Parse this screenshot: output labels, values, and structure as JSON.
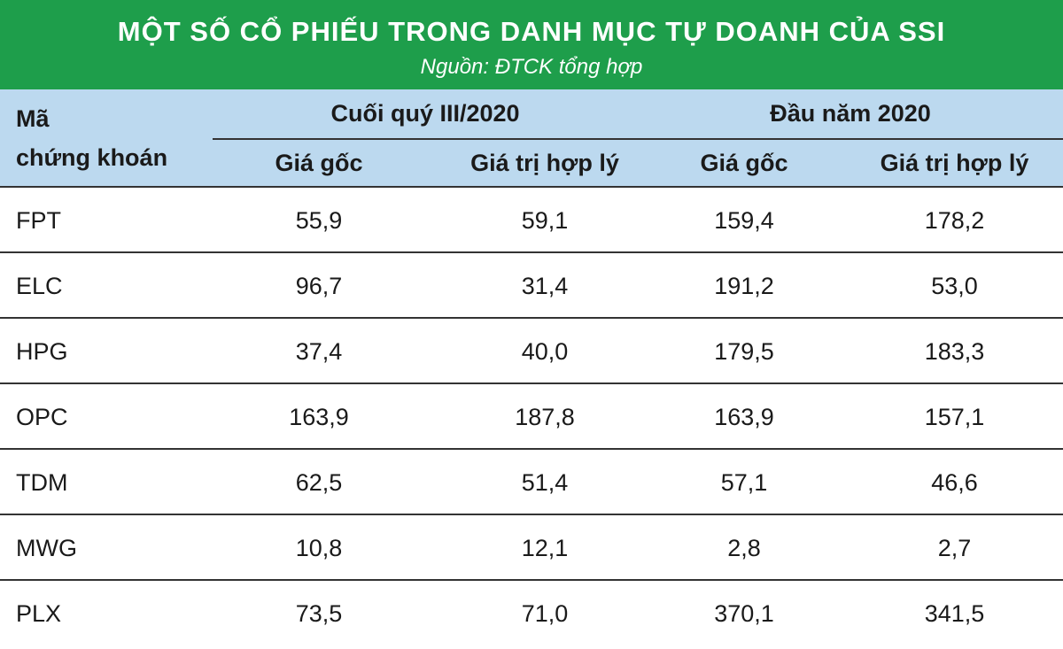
{
  "title": "MỘT SỐ CỔ PHIẾU TRONG DANH MỤC TỰ DOANH CỦA SSI",
  "subtitle": "Nguồn: ĐTCK tổng hợp",
  "chart_data": {
    "type": "table",
    "header": {
      "col0_line1": "Mã",
      "col0_line2": "chứng khoán",
      "groups": [
        "Cuối quý III/2020",
        "Đầu năm 2020"
      ],
      "subheaders": [
        "Giá gốc",
        "Giá trị hợp lý",
        "Giá gốc",
        "Giá trị hợp lý"
      ]
    },
    "rows": [
      {
        "code": "FPT",
        "values": [
          "55,9",
          "59,1",
          "159,4",
          "178,2"
        ]
      },
      {
        "code": "ELC",
        "values": [
          "96,7",
          "31,4",
          "191,2",
          "53,0"
        ]
      },
      {
        "code": "HPG",
        "values": [
          "37,4",
          "40,0",
          "179,5",
          "183,3"
        ]
      },
      {
        "code": "OPC",
        "values": [
          "163,9",
          "187,8",
          "163,9",
          "157,1"
        ]
      },
      {
        "code": "TDM",
        "values": [
          "62,5",
          "51,4",
          "57,1",
          "46,6"
        ]
      },
      {
        "code": "MWG",
        "values": [
          "10,8",
          "12,1",
          "2,8",
          "2,7"
        ]
      },
      {
        "code": "PLX",
        "values": [
          "73,5",
          "71,0",
          "370,1",
          "341,5"
        ]
      }
    ]
  },
  "colors": {
    "title_bg": "#1e9e4b",
    "header_bg": "#bcd9ef",
    "rule": "#333333"
  }
}
